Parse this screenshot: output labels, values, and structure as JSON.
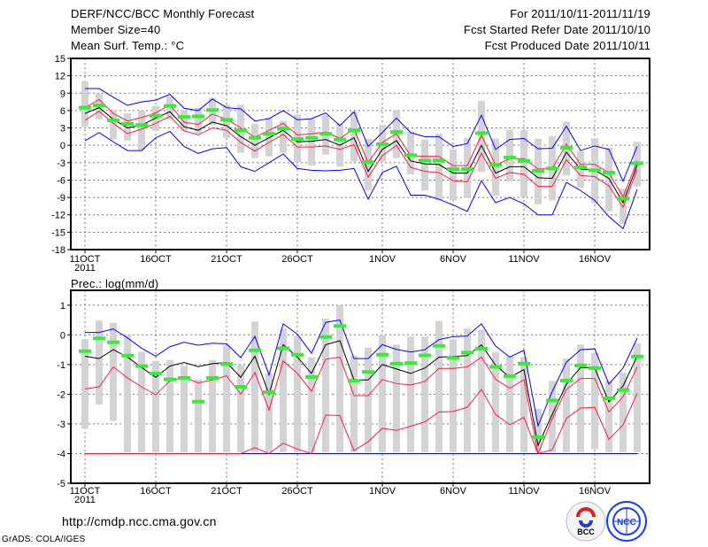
{
  "header": {
    "title": "DERF/NCC/BCC Monthly Forecast",
    "member_size": "Member Size=40",
    "variable": "Mean Surf. Temp.: °C",
    "period": "For 2011/10/11-2011/11/19",
    "start_date": "Fcst Started Refer Date 2011/10/10",
    "produced_date": "Fcst Produced Date 2011/10/11"
  },
  "footer": {
    "url": "http://cmdp.ncc.cma.gov.cn",
    "credit": "GrADS: COLA/IGES",
    "logo_bcc": "BCC",
    "logo_ncc": "NCC"
  },
  "colors": {
    "mean": "#000000",
    "spread": "#ff1a40",
    "extreme": "#0000ff",
    "observed": "#33ee33",
    "range": "#d3d3d6",
    "grid": "#777777"
  },
  "chart_data": [
    {
      "type": "line",
      "title": "Mean Surf. Temp.: °C",
      "ylim": [
        -18,
        15
      ],
      "yticks": [
        "15",
        "12",
        "9",
        "6",
        "3",
        "0",
        "-3",
        "-6",
        "-9",
        "-12",
        "-15",
        "-18"
      ],
      "ytick_values": [
        15,
        12,
        9,
        6,
        3,
        0,
        -3,
        -6,
        -9,
        -12,
        -15,
        -18
      ],
      "xtick_days": [
        0,
        5,
        10,
        15,
        21,
        26,
        31,
        36
      ],
      "xticks": [
        "11OCT",
        "16OCT",
        "21OCT",
        "26OCT",
        "1NOV",
        "6NOV",
        "11NOV",
        "16NOV"
      ],
      "xtick_year": "2011",
      "grid": true,
      "n_days": 40,
      "mean": [
        5.5,
        6.5,
        4.5,
        3,
        3.5,
        4.7,
        5.8,
        3.2,
        2.6,
        4,
        3.4,
        1.5,
        0,
        1.3,
        2.6,
        0.6,
        0.7,
        1,
        0,
        1.3,
        -4.5,
        -0.7,
        0.8,
        -2.7,
        -3.2,
        -3.3,
        -4.8,
        -4.8,
        0,
        -4.8,
        -3.7,
        -3.7,
        -5.6,
        -5.7,
        -1.2,
        -4.1,
        -4.3,
        -5.7,
        -9.9,
        -3.4
      ],
      "upper": [
        6.5,
        7.9,
        5.5,
        4.2,
        4.8,
        5.6,
        7,
        4,
        3.6,
        5.4,
        4.5,
        3,
        1.4,
        2.6,
        3.8,
        1.8,
        2,
        2.3,
        1.2,
        2.8,
        -3,
        0.5,
        2,
        -1.8,
        -1.9,
        -1.9,
        -3.5,
        -3.5,
        1.7,
        -3.4,
        -2.3,
        -2.3,
        -4.1,
        -4,
        0.2,
        -3.3,
        -3.3,
        -4.7,
        -8.9,
        -2.7
      ],
      "lower": [
        4.3,
        5.9,
        3.8,
        2,
        2.8,
        3.8,
        5,
        2.5,
        1.8,
        3,
        2.6,
        0.5,
        -1,
        0.5,
        1.9,
        -0.3,
        -0.3,
        -0.1,
        -0.7,
        0.1,
        -5.5,
        -1.8,
        0,
        -3.8,
        -4.5,
        -4.7,
        -6.1,
        -6.3,
        -1.4,
        -5.7,
        -4.7,
        -5,
        -7.1,
        -7.1,
        -2.5,
        -5.2,
        -5.4,
        -7,
        -10.7,
        -4.2
      ],
      "max": [
        9.8,
        9.8,
        8.3,
        6.9,
        7.5,
        7.8,
        8.8,
        6.4,
        6,
        8,
        6.5,
        6.3,
        4.2,
        4.6,
        6,
        4.4,
        4.6,
        5.6,
        3.4,
        5.8,
        -0.2,
        2.2,
        4.7,
        2.2,
        1.5,
        1.5,
        -0.2,
        0.3,
        5.2,
        -0.7,
        1,
        1.2,
        -0.6,
        -0.5,
        3.3,
        -0.9,
        -0.1,
        -0.7,
        -6.2,
        -0.2
      ],
      "min": [
        0.8,
        2.2,
        0.6,
        -0.9,
        -0.9,
        1.3,
        2.4,
        -0.2,
        -1.4,
        -0.6,
        -0.4,
        -3.7,
        -4.5,
        -3,
        -1.5,
        -4,
        -4.3,
        -4.4,
        -4.3,
        -4,
        -9.3,
        -4.7,
        -3.6,
        -8.6,
        -8.6,
        -9.3,
        -10.3,
        -11.4,
        -6.1,
        -9.9,
        -9,
        -10.1,
        -12,
        -12,
        -6.4,
        -7.8,
        -9.5,
        -12.3,
        -14.4,
        -7.6
      ],
      "observed": [
        6.5,
        6.9,
        4.3,
        3.7,
        3.5,
        5.1,
        6.8,
        4.9,
        5,
        6.1,
        4.4,
        2.6,
        1.3,
        2,
        2.9,
        1.1,
        1.3,
        2,
        1,
        2.6,
        -2.9,
        0.2,
        2.3,
        -1.7,
        -2.6,
        -2.6,
        -4.1,
        -4.1,
        2.1,
        -3.4,
        -2.1,
        -2.7,
        -4.4,
        -4,
        -0.4,
        -3.8,
        -4.3,
        -4.7,
        -9.2,
        -3.1
      ],
      "range_low": [
        3.2,
        4.5,
        1,
        0.8,
        -0.8,
        2.5,
        4.5,
        2.5,
        2,
        3.5,
        1.3,
        -1.3,
        -2.2,
        -1.9,
        -1.3,
        -2.9,
        -3.5,
        -1.6,
        -3.7,
        -2.8,
        -7.8,
        -2.8,
        -2.2,
        -5,
        -7.8,
        -9.5,
        -9.5,
        -9.1,
        -4.6,
        -8.7,
        -6.2,
        -8.9,
        -10.2,
        -9.5,
        -5.2,
        -7.3,
        -10,
        -11.4,
        -13.6,
        -7.1
      ],
      "range_high": [
        11,
        9,
        6,
        5.5,
        6,
        6.8,
        8.5,
        6,
        6.5,
        8.2,
        7,
        7,
        3.7,
        4.8,
        4.2,
        5.3,
        4.5,
        5.2,
        3.8,
        5.8,
        1.1,
        3.5,
        6.1,
        2.3,
        1,
        2,
        -0.7,
        1.3,
        7.7,
        1.2,
        2.7,
        2.6,
        1.1,
        1.6,
        4.1,
        -1,
        1.2,
        -0.4,
        -7.5,
        0.6
      ]
    },
    {
      "type": "line",
      "title": "Prec.: log(mm/d)",
      "ylim": [
        -5,
        1.5
      ],
      "yticks": [
        "1",
        "0",
        "-1",
        "-2",
        "-3",
        "-4",
        "-5"
      ],
      "ytick_values": [
        1,
        0,
        -1,
        -2,
        -3,
        -4,
        -5
      ],
      "xtick_days": [
        0,
        5,
        10,
        15,
        21,
        26,
        31,
        36
      ],
      "xticks": [
        "11OCT",
        "16OCT",
        "21OCT",
        "26OCT",
        "1NOV",
        "6NOV",
        "11NOV",
        "16NOV"
      ],
      "xtick_year": "2011",
      "grid": true,
      "n_days": 40,
      "mean": [
        -0.72,
        -0.8,
        -0.5,
        -0.75,
        -1.1,
        -1.43,
        -1.05,
        -0.93,
        -1.07,
        -0.97,
        -0.93,
        -1.43,
        -0.72,
        -2,
        -0.33,
        -0.75,
        -1.3,
        -0.33,
        -0.2,
        -1.52,
        -1.52,
        -1,
        -1.15,
        -1.3,
        -1.12,
        -0.75,
        -0.73,
        -0.7,
        -0.34,
        -1.02,
        -1.43,
        -1.17,
        -3.72,
        -2.68,
        -1.66,
        -1.1,
        -1.12,
        -2.26,
        -1.72,
        -0.72
      ],
      "upper": [
        -1.82,
        -1.75,
        -1.08,
        -1.45,
        -1.75,
        -2.02,
        -1.55,
        -1.43,
        -1.62,
        -1.52,
        -1.38,
        -2,
        -1.27,
        -2.53,
        -0.88,
        -1.3,
        -1.9,
        -0.82,
        -0.75,
        -2.05,
        -2.05,
        -1.51,
        -1.64,
        -1.69,
        -1.57,
        -1.13,
        -1.13,
        -1.08,
        -0.75,
        -1.5,
        -1.8,
        -1.51,
        -4,
        -2.83,
        -1.84,
        -1.47,
        -1.47,
        -2.6,
        -2.09,
        -1.08
      ],
      "lower": [
        -4,
        -4,
        -4,
        -4,
        -4,
        -4,
        -4,
        -4,
        -4,
        -4,
        -4,
        -4,
        -3.8,
        -4,
        -3.65,
        -3.85,
        -4,
        -2.7,
        -2.72,
        -3.9,
        -3.6,
        -3.15,
        -3.22,
        -3.08,
        -2.93,
        -2.6,
        -2.58,
        -2.44,
        -1.84,
        -2.68,
        -3.03,
        -2.78,
        -4,
        -3.87,
        -2.81,
        -2.47,
        -2.44,
        -3.52,
        -3.03,
        -1.97
      ],
      "max": [
        0.08,
        0.08,
        0.2,
        -0.1,
        -0.45,
        -0.72,
        -0.4,
        -0.25,
        -0.35,
        -0.28,
        -0.3,
        -0.77,
        -0.05,
        -1.35,
        0.37,
        0.02,
        -0.62,
        0.42,
        0.5,
        -0.8,
        -0.8,
        -0.33,
        -0.49,
        -0.58,
        -0.5,
        -0.16,
        -0.06,
        -0.04,
        0.37,
        -0.38,
        -0.75,
        -0.52,
        -3.06,
        -1.91,
        -0.92,
        -0.5,
        -0.47,
        -1.66,
        -1.12,
        -0.11
      ],
      "min": [
        -4,
        -4,
        -4,
        -4,
        -4,
        -4,
        -4,
        -4,
        -4,
        -4,
        -4,
        -4,
        -4,
        -4,
        -4,
        -4,
        -4,
        -4,
        -4,
        -4,
        -4,
        -4,
        -4,
        -4,
        -4,
        -4,
        -4,
        -4,
        -4,
        -4,
        -4,
        -4,
        -4,
        -4,
        -4,
        -4,
        -4,
        -4,
        -4,
        -4
      ],
      "observed": [
        -0.55,
        -0.12,
        -0.25,
        -0.7,
        -1.05,
        -1.3,
        -1.5,
        -1.45,
        -2.25,
        -1.45,
        -0.98,
        -1.75,
        -0.52,
        -1.93,
        -0.45,
        -0.67,
        -1.42,
        -0.07,
        0.3,
        -1.55,
        -1.25,
        -0.67,
        -0.97,
        -0.95,
        -0.69,
        -0.37,
        -0.78,
        -0.6,
        -0.47,
        -1.08,
        -1.39,
        -0.97,
        -3.45,
        -2.21,
        -1.54,
        -1.03,
        -1.12,
        -2.14,
        -1.86,
        -0.73
      ],
      "range_low": [
        -3.15,
        -2.35,
        -2.9,
        -3.95,
        -3.95,
        -3.95,
        -3.95,
        -3.95,
        -3.95,
        -3.95,
        -3.95,
        -3.95,
        -3.95,
        -3.95,
        -3.95,
        -3.95,
        -3.95,
        -3.95,
        -3.95,
        -3.95,
        -3.95,
        -3.95,
        -3.95,
        -3.95,
        -3.95,
        -3.95,
        -3.95,
        -3.95,
        -3.95,
        -3.95,
        -3.95,
        -3.95,
        -3.95,
        -3.95,
        -3.95,
        -3.95,
        -3.85,
        -3.95,
        -3.95,
        -3.95
      ],
      "range_high": [
        -0.15,
        0.48,
        0.4,
        0,
        -0.57,
        -0.88,
        -0.85,
        -1.05,
        -1.5,
        -0.85,
        -0.35,
        -1.02,
        0.45,
        -1.3,
        0.2,
        -0.05,
        -0.75,
        0.55,
        1,
        -0.7,
        -0.43,
        0,
        -0.33,
        -0.06,
        -0.06,
        0.47,
        -0.16,
        0.21,
        0.16,
        -0.58,
        -0.72,
        -0.75,
        -2.49,
        -1.55,
        -0.8,
        -0.33,
        -0.62,
        -1.55,
        -1.27,
        -0.29
      ]
    }
  ]
}
